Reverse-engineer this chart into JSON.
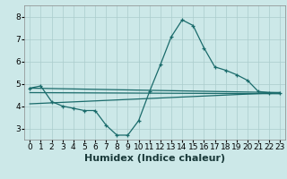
{
  "background_color": "#cce8e8",
  "grid_color": "#aacccc",
  "line_color": "#1a6b6b",
  "xlabel": "Humidex (Indice chaleur)",
  "xlabel_fontsize": 8,
  "tick_fontsize": 6.5,
  "xlim": [
    -0.5,
    23.5
  ],
  "ylim": [
    2.5,
    8.5
  ],
  "yticks": [
    3,
    4,
    5,
    6,
    7,
    8
  ],
  "xticks": [
    0,
    1,
    2,
    3,
    4,
    5,
    6,
    7,
    8,
    9,
    10,
    11,
    12,
    13,
    14,
    15,
    16,
    17,
    18,
    19,
    20,
    21,
    22,
    23
  ],
  "series": [
    {
      "x": [
        0,
        1,
        2,
        3,
        4,
        5,
        6,
        7,
        8,
        9,
        10,
        11,
        12,
        13,
        14,
        15,
        16,
        17,
        18,
        19,
        20,
        21,
        22,
        23
      ],
      "y": [
        4.8,
        4.9,
        4.2,
        4.0,
        3.9,
        3.8,
        3.8,
        3.15,
        2.7,
        2.7,
        3.35,
        4.65,
        5.85,
        7.1,
        7.85,
        7.6,
        6.6,
        5.75,
        5.6,
        5.4,
        5.15,
        4.65,
        4.6,
        4.6
      ],
      "has_markers": true
    },
    {
      "x": [
        0,
        23
      ],
      "y": [
        4.8,
        4.6
      ],
      "has_markers": false
    },
    {
      "x": [
        0,
        23
      ],
      "y": [
        4.6,
        4.55
      ],
      "has_markers": false
    },
    {
      "x": [
        0,
        23
      ],
      "y": [
        4.1,
        4.6
      ],
      "has_markers": false
    }
  ]
}
